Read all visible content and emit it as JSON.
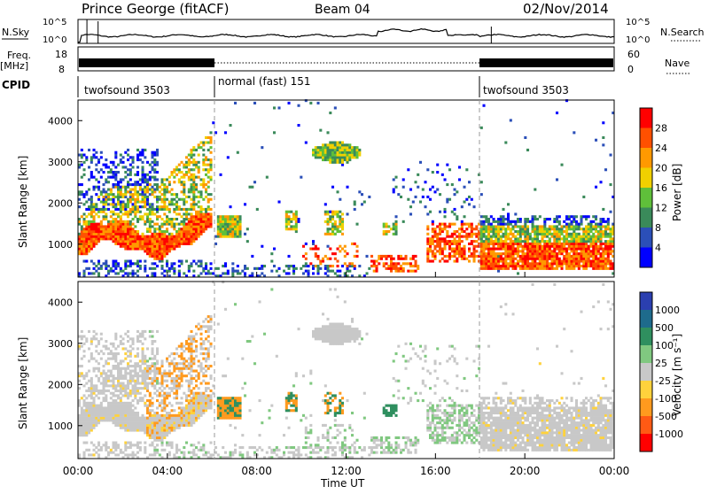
{
  "header": {
    "station": "Prince George (fitACF)",
    "beam": "Beam 04",
    "date": "02/Nov/2014"
  },
  "nsky_panel": {
    "left_label": "N.Sky",
    "left_tick_top": "10^5",
    "left_tick_bottom": "10^0",
    "right_label": "N.Search",
    "right_tick_top": "10^5",
    "right_tick_bottom": "10^0"
  },
  "freq_panel": {
    "left_label": "Freq.",
    "left_unit": "[MHz]",
    "left_tick_top": "18",
    "left_tick_bottom": "8",
    "right_label": "Nave",
    "right_tick_top": "60",
    "right_tick_bottom": "0"
  },
  "cpid_panel": {
    "label": "CPID",
    "segments": [
      {
        "name": "twofsound 3503",
        "start_hour": 0,
        "end_hour": 6
      },
      {
        "name": "normal (fast) 151",
        "start_hour": 6,
        "end_hour": 18
      },
      {
        "name": "twofsound 3503",
        "start_hour": 18,
        "end_hour": 24
      }
    ]
  },
  "chart_data": [
    {
      "type": "heatmap",
      "name": "power",
      "ylabel": "Slant Range [km]",
      "ylim": [
        200,
        4500
      ],
      "yticks": [
        "1000",
        "2000",
        "3000",
        "4000"
      ],
      "colorbar_label": "Power [dB]",
      "colorbar_ticks": [
        "4",
        "8",
        "12",
        "16",
        "20",
        "24",
        "28"
      ],
      "colors": [
        "#0000ff",
        "#2b4fb8",
        "#3a8a5a",
        "#5fbf3a",
        "#f0d000",
        "#ff9900",
        "#ff5000",
        "#ff0000"
      ]
    },
    {
      "type": "heatmap",
      "name": "velocity",
      "ylabel": "Slant Range [km]",
      "ylim": [
        200,
        4500
      ],
      "yticks": [
        "1000",
        "2000",
        "3000",
        "4000"
      ],
      "colorbar_label": "Velocity [m s⁻¹]",
      "colorbar_ticks": [
        "1000",
        "500",
        "100",
        "25",
        "-25",
        "-100",
        "-500",
        "-1000"
      ],
      "colors": [
        "#2b3fb0",
        "#1e6b8c",
        "#2f8f5f",
        "#80c880",
        "#c8c8c8",
        "#ffd23c",
        "#ff9a1e",
        "#ff5a14",
        "#ff0000"
      ]
    }
  ],
  "time_axis": {
    "label": "Time UT",
    "ticks": [
      "00:00",
      "04:00",
      "08:00",
      "12:00",
      "16:00",
      "20:00",
      "00:00"
    ]
  }
}
